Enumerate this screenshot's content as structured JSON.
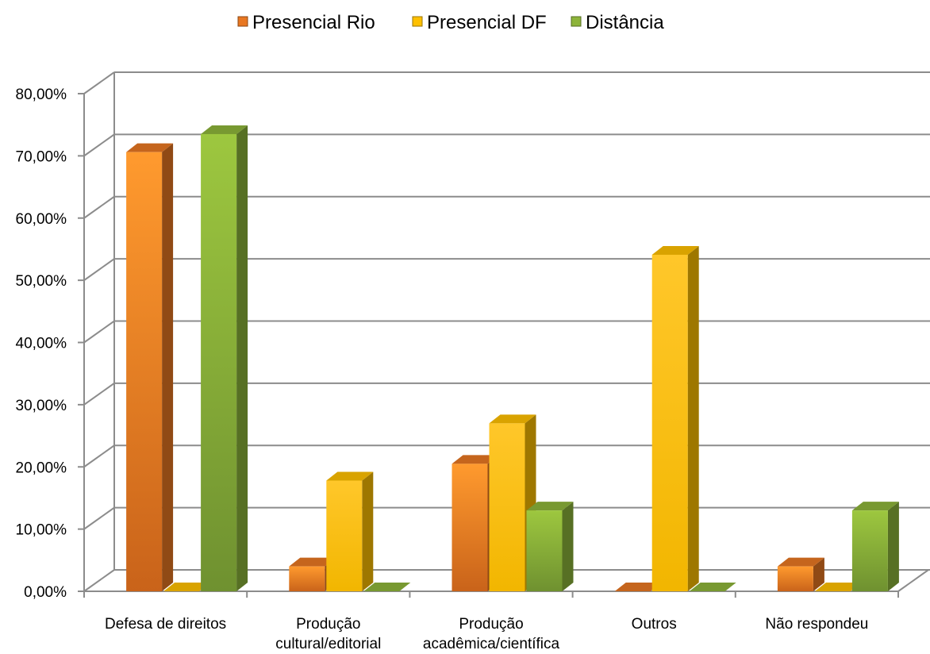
{
  "chart_data": {
    "type": "bar",
    "style": "3d-clustered-column",
    "categories": [
      [
        "Defesa de direitos"
      ],
      [
        "Produção",
        "cultural/editorial"
      ],
      [
        "Produção",
        "acadêmica/científica"
      ],
      [
        "Outros"
      ],
      [
        "Não respondeu"
      ]
    ],
    "series": [
      {
        "name": "Presencial Rio",
        "color": "#E87722",
        "values": [
          70.6,
          4.0,
          20.5,
          0.0,
          4.0
        ]
      },
      {
        "name": "Presencial DF",
        "color": "#FFC000",
        "values": [
          0.0,
          17.8,
          27.0,
          54.1,
          0.0
        ]
      },
      {
        "name": "Distância",
        "color": "#8DB43A",
        "values": [
          73.5,
          0.0,
          13.0,
          0.0,
          13.0
        ]
      }
    ],
    "yticks": [
      "0,00%",
      "10,00%",
      "20,00%",
      "30,00%",
      "40,00%",
      "50,00%",
      "60,00%",
      "70,00%",
      "80,00%"
    ],
    "ylim": [
      0,
      80
    ],
    "grid": true,
    "legend_position": "top",
    "title": "",
    "xlabel": "",
    "ylabel": ""
  }
}
